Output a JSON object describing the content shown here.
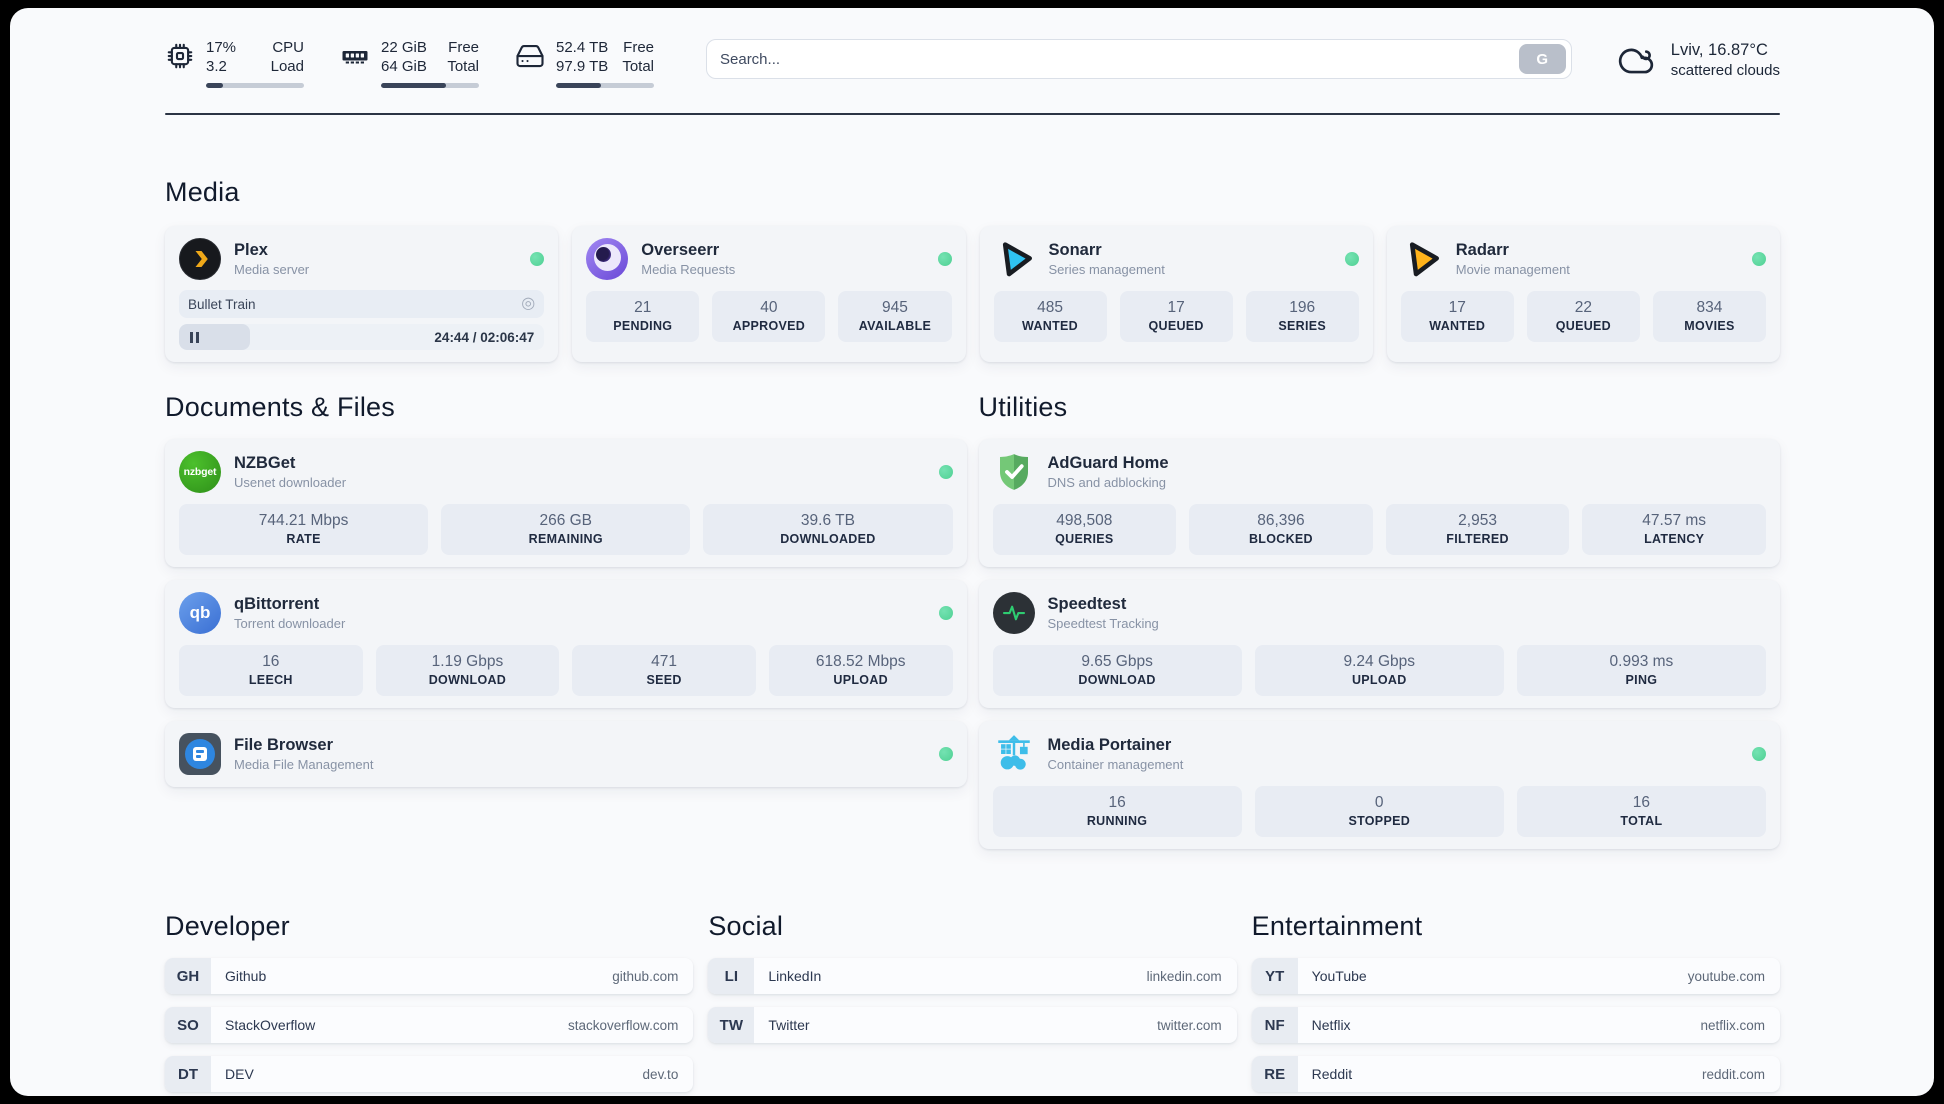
{
  "header": {
    "stats": [
      {
        "name": "cpu",
        "value_top": "17%",
        "value_bottom": "3.2",
        "label_top": "CPU",
        "label_bottom": "Load",
        "progress": 17
      },
      {
        "name": "memory",
        "value_top": "22 GiB",
        "value_bottom": "64 GiB",
        "label_top": "Free",
        "label_bottom": "Total",
        "progress": 66
      },
      {
        "name": "storage",
        "value_top": "52.4 TB",
        "value_bottom": "97.9 TB",
        "label_top": "Free",
        "label_bottom": "Total",
        "progress": 46
      }
    ],
    "search": {
      "placeholder": "Search...",
      "button_label": "G"
    },
    "weather": {
      "location": "Lviv, 16.87°C",
      "condition": "scattered clouds"
    }
  },
  "sections": {
    "media": "Media",
    "documents": "Documents & Files",
    "utilities": "Utilities",
    "developer": "Developer",
    "social": "Social",
    "entertainment": "Entertainment"
  },
  "apps": {
    "plex": {
      "name": "Plex",
      "desc": "Media server",
      "status": "online",
      "player": {
        "title": "Bullet Train",
        "time": "24:44 / 02:06:47",
        "progress": 19.5
      }
    },
    "overseerr": {
      "name": "Overseerr",
      "desc": "Media Requests",
      "status": "online",
      "stats": [
        {
          "value": "21",
          "label": "PENDING"
        },
        {
          "value": "40",
          "label": "APPROVED"
        },
        {
          "value": "945",
          "label": "AVAILABLE"
        }
      ]
    },
    "sonarr": {
      "name": "Sonarr",
      "desc": "Series management",
      "status": "online",
      "stats": [
        {
          "value": "485",
          "label": "WANTED"
        },
        {
          "value": "17",
          "label": "QUEUED"
        },
        {
          "value": "196",
          "label": "SERIES"
        }
      ]
    },
    "radarr": {
      "name": "Radarr",
      "desc": "Movie management",
      "status": "online",
      "stats": [
        {
          "value": "17",
          "label": "WANTED"
        },
        {
          "value": "22",
          "label": "QUEUED"
        },
        {
          "value": "834",
          "label": "MOVIES"
        }
      ]
    },
    "nzbget": {
      "name": "NZBGet",
      "desc": "Usenet downloader",
      "status": "online",
      "icon_text": "nzbget",
      "stats": [
        {
          "value": "744.21 Mbps",
          "label": "RATE"
        },
        {
          "value": "266 GB",
          "label": "REMAINING"
        },
        {
          "value": "39.6 TB",
          "label": "DOWNLOADED"
        }
      ]
    },
    "qbittorrent": {
      "name": "qBittorrent",
      "desc": "Torrent downloader",
      "status": "online",
      "icon_text": "qb",
      "stats": [
        {
          "value": "16",
          "label": "LEECH"
        },
        {
          "value": "1.19 Gbps",
          "label": "DOWNLOAD"
        },
        {
          "value": "471",
          "label": "SEED"
        },
        {
          "value": "618.52 Mbps",
          "label": "UPLOAD"
        }
      ]
    },
    "filebrowser": {
      "name": "File Browser",
      "desc": "Media File Management",
      "status": "online"
    },
    "adguard": {
      "name": "AdGuard Home",
      "desc": "DNS and adblocking",
      "stats": [
        {
          "value": "498,508",
          "label": "QUERIES"
        },
        {
          "value": "86,396",
          "label": "BLOCKED"
        },
        {
          "value": "2,953",
          "label": "FILTERED"
        },
        {
          "value": "47.57 ms",
          "label": "LATENCY"
        }
      ]
    },
    "speedtest": {
      "name": "Speedtest",
      "desc": "Speedtest Tracking",
      "stats": [
        {
          "value": "9.65 Gbps",
          "label": "DOWNLOAD"
        },
        {
          "value": "9.24 Gbps",
          "label": "UPLOAD"
        },
        {
          "value": "0.993 ms",
          "label": "PING"
        }
      ]
    },
    "portainer": {
      "name": "Media Portainer",
      "desc": "Container management",
      "status": "online",
      "stats": [
        {
          "value": "16",
          "label": "RUNNING"
        },
        {
          "value": "0",
          "label": "STOPPED"
        },
        {
          "value": "16",
          "label": "TOTAL"
        }
      ]
    }
  },
  "links": {
    "developer": [
      {
        "abbr": "GH",
        "name": "Github",
        "url": "github.com"
      },
      {
        "abbr": "SO",
        "name": "StackOverflow",
        "url": "stackoverflow.com"
      },
      {
        "abbr": "DT",
        "name": "DEV",
        "url": "dev.to"
      }
    ],
    "social": [
      {
        "abbr": "LI",
        "name": "LinkedIn",
        "url": "linkedin.com"
      },
      {
        "abbr": "TW",
        "name": "Twitter",
        "url": "twitter.com"
      }
    ],
    "entertainment": [
      {
        "abbr": "YT",
        "name": "YouTube",
        "url": "youtube.com"
      },
      {
        "abbr": "NF",
        "name": "Netflix",
        "url": "netflix.com"
      },
      {
        "abbr": "RE",
        "name": "Reddit",
        "url": "reddit.com"
      }
    ]
  },
  "colors": {
    "status_online": "#5bd8a0",
    "progress_fill": "#3a4459",
    "plex_brand": "#efa819",
    "sonarr_brand": "#2fc3f3",
    "radarr_brand": "#ffb31a",
    "portainer_brand": "#3dbde9"
  }
}
